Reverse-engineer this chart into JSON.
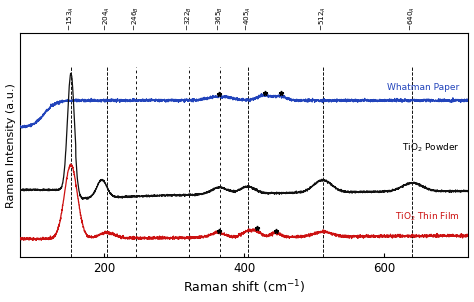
{
  "xlabel": "Raman shift (cm$^{-1}$)",
  "ylabel": "Raman Intensity (a.u.)",
  "xlim": [
    80,
    720
  ],
  "xticks": [
    200,
    400,
    600
  ],
  "peak_labels": [
    {
      "x": 153,
      "label": "153",
      "sub": "A",
      "linestyle": "dashed"
    },
    {
      "x": 204,
      "label": "204",
      "sub": "A",
      "linestyle": "dashed"
    },
    {
      "x": 246,
      "label": "246",
      "sub": "B",
      "linestyle": "dotted"
    },
    {
      "x": 322,
      "label": "322",
      "sub": "B",
      "linestyle": "dotted"
    },
    {
      "x": 365,
      "label": "365",
      "sub": "B",
      "linestyle": "dotted"
    },
    {
      "x": 405,
      "label": "405",
      "sub": "A",
      "linestyle": "dashed"
    },
    {
      "x": 512,
      "label": "512",
      "sub": "A",
      "linestyle": "dashed"
    },
    {
      "x": 640,
      "label": "640",
      "sub": "A",
      "linestyle": "dashed"
    }
  ],
  "colors": [
    "#2244bb",
    "#111111",
    "#cc1111"
  ],
  "star_blue": [
    365,
    430,
    452
  ],
  "star_red": [
    365,
    418,
    445
  ],
  "background_color": "#f5f5f5"
}
